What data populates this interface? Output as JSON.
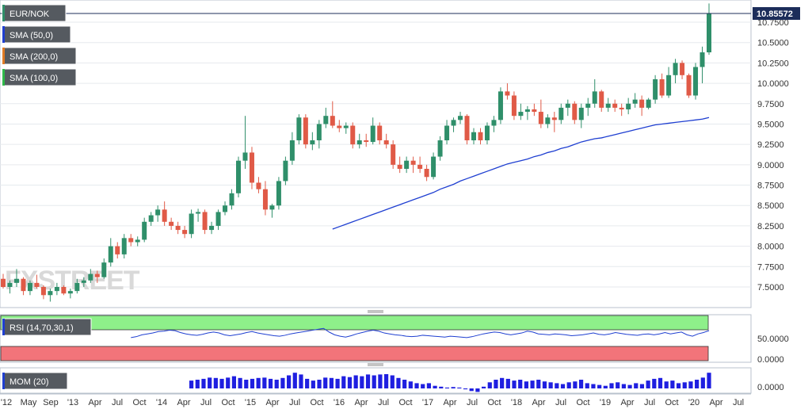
{
  "chart_data": {
    "type": "candlestick",
    "symbol": "EUR/NOK",
    "last_price": "10.85572",
    "indicators": [
      "SMA (50,0)",
      "SMA (200,0)",
      "SMA (100,0)"
    ],
    "indicator_colors": [
      "#1f3fd1",
      "#e07b24",
      "#2fb84a"
    ],
    "up_color": "#2f8f6a",
    "down_color": "#e05a47",
    "y_ticks": [
      "7.5000",
      "7.7500",
      "8.0000",
      "8.2500",
      "8.5000",
      "8.7500",
      "9.0000",
      "9.2500",
      "9.5000",
      "9.7500",
      "10.0000",
      "10.2500",
      "10.5000",
      "10.7500"
    ],
    "ylim": [
      7.27,
      10.98
    ],
    "x_labels": [
      "'12",
      "May",
      "Sep",
      "'13",
      "Apr",
      "Jul",
      "Oct",
      "'14",
      "Apr",
      "Jul",
      "Oct",
      "'15",
      "Apr",
      "Jul",
      "Oct",
      "'16",
      "Apr",
      "Jul",
      "Oct",
      "'17",
      "Apr",
      "Jul",
      "Oct",
      "'18",
      "Apr",
      "Jul",
      "Oct",
      "'19",
      "Apr",
      "Jul",
      "Oct",
      "'20",
      "Apr",
      "Jul"
    ],
    "candles": [
      [
        7.6,
        7.66,
        7.48,
        7.5
      ],
      [
        7.5,
        7.58,
        7.42,
        7.55
      ],
      [
        7.55,
        7.72,
        7.5,
        7.6
      ],
      [
        7.6,
        7.62,
        7.4,
        7.45
      ],
      [
        7.45,
        7.58,
        7.4,
        7.55
      ],
      [
        7.55,
        7.65,
        7.48,
        7.5
      ],
      [
        7.5,
        7.52,
        7.35,
        7.4
      ],
      [
        7.4,
        7.48,
        7.32,
        7.45
      ],
      [
        7.45,
        7.55,
        7.4,
        7.5
      ],
      [
        7.5,
        7.52,
        7.4,
        7.42
      ],
      [
        7.42,
        7.48,
        7.36,
        7.45
      ],
      [
        7.45,
        7.6,
        7.42,
        7.55
      ],
      [
        7.55,
        7.62,
        7.5,
        7.58
      ],
      [
        7.58,
        7.72,
        7.55,
        7.66
      ],
      [
        7.66,
        7.7,
        7.55,
        7.62
      ],
      [
        7.62,
        7.85,
        7.6,
        7.8
      ],
      [
        7.8,
        8.1,
        7.75,
        8.0
      ],
      [
        8.0,
        8.05,
        7.85,
        7.9
      ],
      [
        7.9,
        8.15,
        7.85,
        8.1
      ],
      [
        8.1,
        8.15,
        8.0,
        8.05
      ],
      [
        8.05,
        8.12,
        8.0,
        8.08
      ],
      [
        8.08,
        8.35,
        8.05,
        8.3
      ],
      [
        8.3,
        8.42,
        8.25,
        8.38
      ],
      [
        8.38,
        8.5,
        8.3,
        8.45
      ],
      [
        8.45,
        8.55,
        8.25,
        8.3
      ],
      [
        8.3,
        8.35,
        8.2,
        8.25
      ],
      [
        8.25,
        8.3,
        8.15,
        8.2
      ],
      [
        8.2,
        8.25,
        8.1,
        8.15
      ],
      [
        8.15,
        8.45,
        8.1,
        8.4
      ],
      [
        8.4,
        8.46,
        8.3,
        8.42
      ],
      [
        8.42,
        8.45,
        8.15,
        8.2
      ],
      [
        8.2,
        8.3,
        8.15,
        8.25
      ],
      [
        8.25,
        8.45,
        8.2,
        8.42
      ],
      [
        8.42,
        8.55,
        8.38,
        8.5
      ],
      [
        8.5,
        8.7,
        8.45,
        8.65
      ],
      [
        8.65,
        9.1,
        8.6,
        9.05
      ],
      [
        9.05,
        9.6,
        8.95,
        9.15
      ],
      [
        9.15,
        9.22,
        8.7,
        8.78
      ],
      [
        8.78,
        8.85,
        8.65,
        8.7
      ],
      [
        8.7,
        8.8,
        8.38,
        8.45
      ],
      [
        8.45,
        8.52,
        8.35,
        8.5
      ],
      [
        8.5,
        8.85,
        8.45,
        8.8
      ],
      [
        8.8,
        9.1,
        8.75,
        9.05
      ],
      [
        9.05,
        9.4,
        9.0,
        9.3
      ],
      [
        9.3,
        9.62,
        9.25,
        9.58
      ],
      [
        9.58,
        9.62,
        9.2,
        9.25
      ],
      [
        9.25,
        9.4,
        9.18,
        9.3
      ],
      [
        9.3,
        9.55,
        9.2,
        9.5
      ],
      [
        9.5,
        9.7,
        9.45,
        9.6
      ],
      [
        9.6,
        9.78,
        9.45,
        9.48
      ],
      [
        9.48,
        9.55,
        9.4,
        9.45
      ],
      [
        9.45,
        9.52,
        9.38,
        9.48
      ],
      [
        9.48,
        9.52,
        9.2,
        9.25
      ],
      [
        9.25,
        9.38,
        9.2,
        9.3
      ],
      [
        9.3,
        9.38,
        9.22,
        9.28
      ],
      [
        9.28,
        9.58,
        9.25,
        9.48
      ],
      [
        9.48,
        9.52,
        9.25,
        9.3
      ],
      [
        9.3,
        9.38,
        9.2,
        9.25
      ],
      [
        9.25,
        9.3,
        8.95,
        9.0
      ],
      [
        9.0,
        9.1,
        8.9,
        8.95
      ],
      [
        8.95,
        9.1,
        8.9,
        9.05
      ],
      [
        9.05,
        9.1,
        8.9,
        9.0
      ],
      [
        9.0,
        9.1,
        8.9,
        8.95
      ],
      [
        8.95,
        9.0,
        8.8,
        8.85
      ],
      [
        8.85,
        9.15,
        8.82,
        9.1
      ],
      [
        9.1,
        9.35,
        9.05,
        9.3
      ],
      [
        9.3,
        9.55,
        9.25,
        9.48
      ],
      [
        9.48,
        9.58,
        9.4,
        9.55
      ],
      [
        9.55,
        9.65,
        9.5,
        9.6
      ],
      [
        9.6,
        9.62,
        9.25,
        9.3
      ],
      [
        9.3,
        9.45,
        9.25,
        9.4
      ],
      [
        9.4,
        9.45,
        9.25,
        9.3
      ],
      [
        9.3,
        9.52,
        9.25,
        9.48
      ],
      [
        9.48,
        9.6,
        9.4,
        9.55
      ],
      [
        9.55,
        9.95,
        9.5,
        9.9
      ],
      [
        9.9,
        10.0,
        9.8,
        9.85
      ],
      [
        9.85,
        9.9,
        9.55,
        9.6
      ],
      [
        9.6,
        9.75,
        9.55,
        9.65
      ],
      [
        9.65,
        9.72,
        9.55,
        9.68
      ],
      [
        9.68,
        9.75,
        9.6,
        9.65
      ],
      [
        9.65,
        9.8,
        9.45,
        9.5
      ],
      [
        9.5,
        9.62,
        9.45,
        9.58
      ],
      [
        9.58,
        9.65,
        9.4,
        9.55
      ],
      [
        9.55,
        9.75,
        9.5,
        9.7
      ],
      [
        9.7,
        9.8,
        9.6,
        9.75
      ],
      [
        9.75,
        9.78,
        9.5,
        9.55
      ],
      [
        9.55,
        9.75,
        9.45,
        9.7
      ],
      [
        9.7,
        9.82,
        9.6,
        9.75
      ],
      [
        9.75,
        10.05,
        9.7,
        9.9
      ],
      [
        9.9,
        9.92,
        9.65,
        9.7
      ],
      [
        9.7,
        9.82,
        9.65,
        9.75
      ],
      [
        9.75,
        9.8,
        9.65,
        9.7
      ],
      [
        9.7,
        9.75,
        9.6,
        9.68
      ],
      [
        9.68,
        9.82,
        9.62,
        9.75
      ],
      [
        9.75,
        9.88,
        9.7,
        9.8
      ],
      [
        9.8,
        9.85,
        9.6,
        9.7
      ],
      [
        9.7,
        9.82,
        9.68,
        9.8
      ],
      [
        9.8,
        10.1,
        9.75,
        10.05
      ],
      [
        10.05,
        10.12,
        9.82,
        9.85
      ],
      [
        9.85,
        10.2,
        9.82,
        10.1
      ],
      [
        10.1,
        10.3,
        10.0,
        10.25
      ],
      [
        10.25,
        10.28,
        10.05,
        10.1
      ],
      [
        10.1,
        10.12,
        9.82,
        9.85
      ],
      [
        9.85,
        10.25,
        9.8,
        10.2
      ],
      [
        10.2,
        10.45,
        10.0,
        10.38
      ],
      [
        10.38,
        10.98,
        10.35,
        10.85572
      ]
    ],
    "sma50": [
      null,
      null,
      null,
      null,
      null,
      null,
      null,
      null,
      null,
      null,
      null,
      null,
      null,
      null,
      null,
      null,
      null,
      null,
      null,
      null,
      null,
      null,
      null,
      null,
      null,
      null,
      null,
      null,
      null,
      null,
      null,
      null,
      null,
      null,
      null,
      null,
      null,
      null,
      null,
      null,
      null,
      null,
      null,
      null,
      null,
      null,
      null,
      null,
      null,
      8.21,
      8.24,
      8.27,
      8.3,
      8.33,
      8.36,
      8.39,
      8.42,
      8.45,
      8.48,
      8.51,
      8.54,
      8.57,
      8.6,
      8.63,
      8.66,
      8.7,
      8.73,
      8.76,
      8.8,
      8.83,
      8.86,
      8.89,
      8.92,
      8.95,
      8.98,
      9.01,
      9.03,
      9.05,
      9.07,
      9.1,
      9.12,
      9.15,
      9.17,
      9.2,
      9.22,
      9.25,
      9.28,
      9.3,
      9.32,
      9.33,
      9.35,
      9.37,
      9.39,
      9.41,
      9.43,
      9.45,
      9.47,
      9.49,
      9.5,
      9.51,
      9.52,
      9.53,
      9.54,
      9.55,
      9.56,
      9.58
    ],
    "rsi": {
      "label": "RSI (14,70,30,1)",
      "level_labels": [
        "50.0000",
        "0.0000"
      ],
      "values": [
        null,
        null,
        null,
        null,
        null,
        null,
        null,
        null,
        null,
        null,
        null,
        null,
        null,
        null,
        null,
        null,
        null,
        null,
        null,
        null,
        null,
        null,
        null,
        null,
        null,
        null,
        null,
        null,
        null,
        null,
        null,
        null,
        null,
        null,
        null,
        null,
        null,
        null,
        null,
        null,
        null,
        null,
        null,
        null,
        null,
        null,
        null,
        null,
        null,
        null,
        null,
        null,
        null,
        null,
        null,
        null,
        null,
        null,
        null,
        null,
        null,
        null,
        null,
        null,
        null,
        null,
        null,
        null,
        null,
        null,
        null,
        null,
        null,
        null,
        null,
        null,
        null,
        null,
        null,
        null,
        null,
        null,
        null,
        null,
        null,
        null,
        null,
        null,
        null,
        null,
        null,
        null,
        null,
        null,
        null,
        null,
        null,
        null,
        null,
        null,
        null,
        null,
        null,
        null,
        null,
        null
      ],
      "series": [
        52,
        54,
        58,
        60,
        62,
        65,
        66,
        68,
        67,
        63,
        60,
        58,
        57,
        59,
        62,
        64,
        62,
        58,
        56,
        58,
        60,
        63,
        65,
        62,
        60,
        58,
        56,
        55,
        57,
        60,
        62,
        64,
        66,
        68,
        70,
        72,
        64,
        58,
        55,
        53,
        56,
        60,
        63,
        66,
        68,
        66,
        62,
        60,
        58,
        57,
        55,
        54,
        55,
        57,
        56,
        55,
        54,
        53,
        55,
        54,
        53,
        52,
        54,
        57,
        60,
        62,
        64,
        63,
        60,
        58,
        60,
        62,
        66,
        64,
        60,
        59,
        58,
        60,
        59,
        58,
        56,
        57,
        58,
        60,
        62,
        59,
        58,
        60,
        63,
        61,
        59,
        58,
        57,
        59,
        60,
        58,
        60,
        63,
        60,
        62,
        64,
        58,
        55,
        60,
        63,
        67
      ]
    },
    "momentum": {
      "label": "MOM (20)",
      "level_label": "0.0000",
      "values": [
        0.45,
        0.5,
        0.55,
        0.62,
        0.6,
        0.55,
        0.62,
        0.7,
        0.6,
        0.5,
        0.55,
        0.6,
        0.62,
        0.55,
        0.5,
        0.6,
        0.75,
        0.9,
        0.8,
        0.55,
        0.45,
        0.5,
        0.62,
        0.6,
        0.55,
        0.7,
        0.65,
        0.75,
        0.7,
        0.8,
        0.75,
        0.8,
        0.82,
        0.75,
        0.6,
        0.5,
        0.4,
        0.3,
        0.25,
        0.3,
        0.15,
        0.1,
        0.05,
        0.08,
        0.05,
        -0.05,
        -0.15,
        -0.2,
        0.1,
        0.35,
        0.5,
        0.6,
        0.55,
        0.45,
        0.5,
        0.4,
        0.45,
        0.5,
        0.4,
        0.35,
        0.3,
        0.25,
        0.35,
        0.4,
        0.5,
        0.3,
        0.25,
        0.2,
        0.15,
        0.3,
        0.35,
        0.25,
        0.2,
        0.3,
        0.25,
        0.45,
        0.55,
        0.6,
        0.4,
        0.45,
        0.3,
        0.35,
        0.4,
        0.5,
        0.62,
        0.9
      ]
    },
    "watermark": "FXSTREET"
  }
}
